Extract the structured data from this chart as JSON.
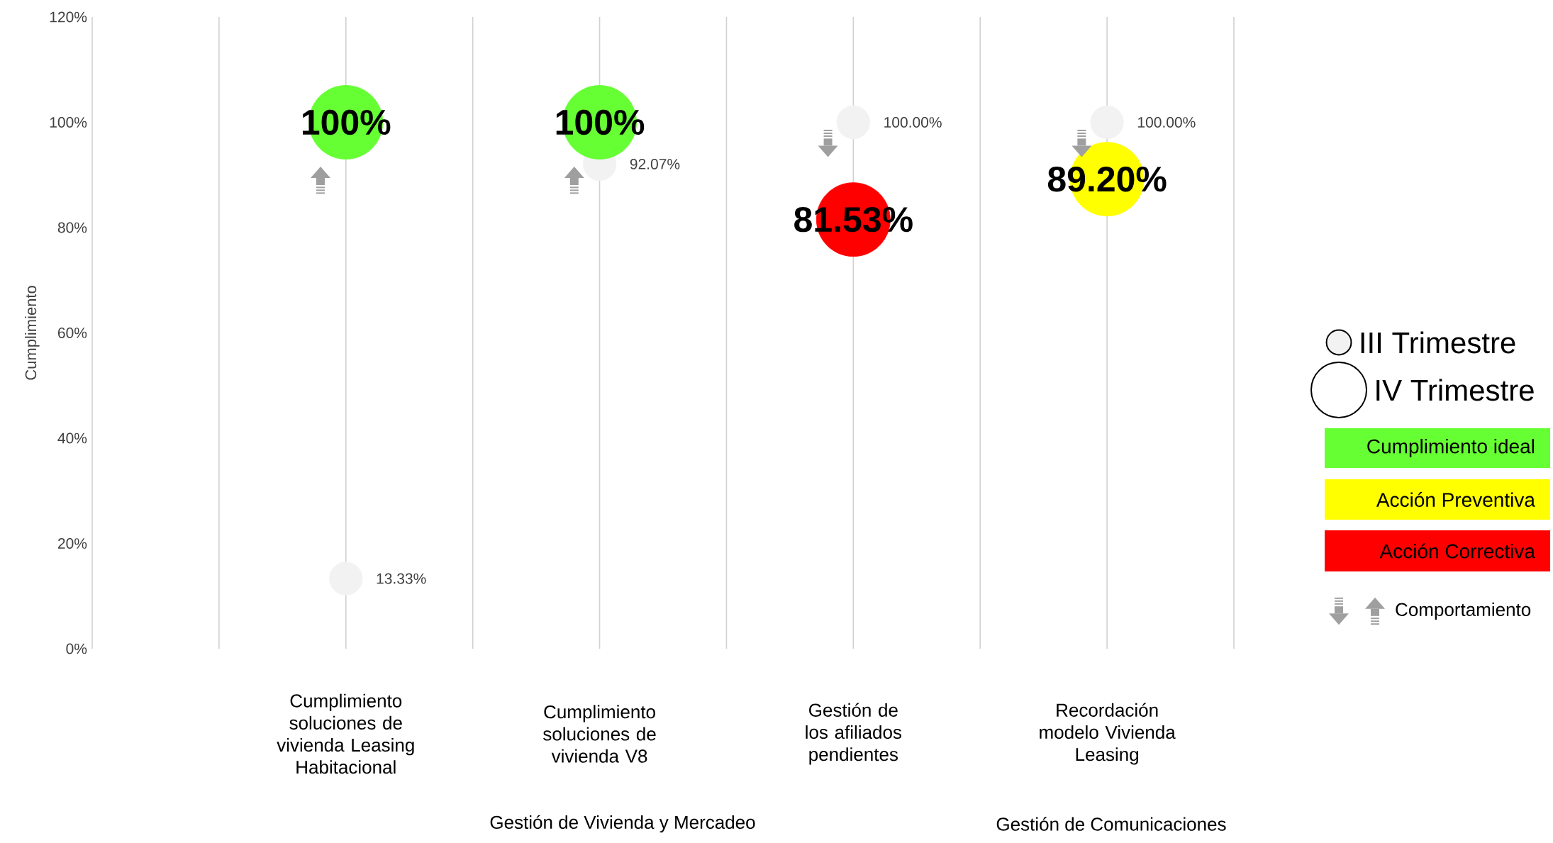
{
  "chart_data": {
    "type": "bubble",
    "ylabel": "Cumplimiento",
    "categories": [
      "Cumplimiento soluciones de vivienda Leasing Habitacional",
      "Cumplimiento soluciones de vivienda V8",
      "Gestión de los afiliados pendientes",
      "Recordación modelo Vivienda Leasing"
    ],
    "ylim": [
      0,
      120
    ],
    "yticks": [
      {
        "value": 0,
        "label": "0%"
      },
      {
        "value": 20,
        "label": "20%"
      },
      {
        "value": 40,
        "label": "40%"
      },
      {
        "value": 60,
        "label": "60%"
      },
      {
        "value": 80,
        "label": "80%"
      },
      {
        "value": 100,
        "label": "100%"
      },
      {
        "value": 120,
        "label": "120%"
      }
    ],
    "grid": "x",
    "legend": "right",
    "series": [
      {
        "name": "III Trimestre",
        "color": "#f2f2f2",
        "values": [
          13.33,
          92.07,
          100,
          100
        ],
        "sizes": [
          0.2,
          0.2,
          0.2,
          0.2
        ],
        "value_labels": [
          "13.33%",
          "92.07%",
          "100.00%",
          "100.00%"
        ]
      },
      {
        "name": "IV Trimestre",
        "colors": [
          "#66ff33",
          "#66ff33",
          "#ff0000",
          "#ffff00"
        ],
        "values": [
          100,
          100,
          81.53,
          89.2
        ],
        "sizes": [
          1,
          1,
          1,
          1
        ],
        "value_labels": [
          "100%",
          "100%",
          "81.53%",
          "89.20%"
        ]
      }
    ],
    "annotations": [
      "Gestión de Vivienda y Mercadeo",
      "Gestión de Comunicaciones",
      "Cumplimiento ideal",
      "Acción Preventiva",
      "Acción Correctiva",
      "Comportamiento"
    ]
  }
}
